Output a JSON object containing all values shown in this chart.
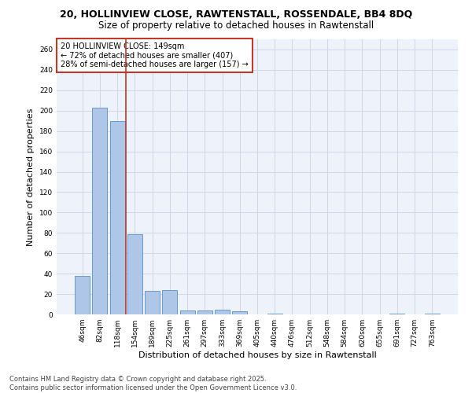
{
  "title_line1": "20, HOLLINVIEW CLOSE, RAWTENSTALL, ROSSENDALE, BB4 8DQ",
  "title_line2": "Size of property relative to detached houses in Rawtenstall",
  "xlabel": "Distribution of detached houses by size in Rawtenstall",
  "ylabel": "Number of detached properties",
  "categories": [
    "46sqm",
    "82sqm",
    "118sqm",
    "154sqm",
    "189sqm",
    "225sqm",
    "261sqm",
    "297sqm",
    "333sqm",
    "369sqm",
    "405sqm",
    "440sqm",
    "476sqm",
    "512sqm",
    "548sqm",
    "584sqm",
    "620sqm",
    "655sqm",
    "691sqm",
    "727sqm",
    "763sqm"
  ],
  "values": [
    38,
    203,
    190,
    79,
    23,
    24,
    4,
    4,
    5,
    3,
    0,
    1,
    0,
    0,
    0,
    0,
    0,
    0,
    1,
    0,
    1
  ],
  "bar_color": "#aec6e8",
  "bar_edge_color": "#5a8fc0",
  "vline_color": "#c0392b",
  "annotation_text_line1": "20 HOLLINVIEW CLOSE: 149sqm",
  "annotation_text_line2": "← 72% of detached houses are smaller (407)",
  "annotation_text_line3": "28% of semi-detached houses are larger (157) →",
  "annotation_box_color": "#c0392b",
  "ylim": [
    0,
    270
  ],
  "yticks": [
    0,
    20,
    40,
    60,
    80,
    100,
    120,
    140,
    160,
    180,
    200,
    220,
    240,
    260
  ],
  "grid_color": "#d0d8e8",
  "background_color": "#eef2fa",
  "footer_line1": "Contains HM Land Registry data © Crown copyright and database right 2025.",
  "footer_line2": "Contains public sector information licensed under the Open Government Licence v3.0.",
  "title_fontsize": 9,
  "subtitle_fontsize": 8.5,
  "axis_label_fontsize": 8,
  "tick_fontsize": 6.5,
  "annotation_fontsize": 7,
  "footer_fontsize": 6
}
